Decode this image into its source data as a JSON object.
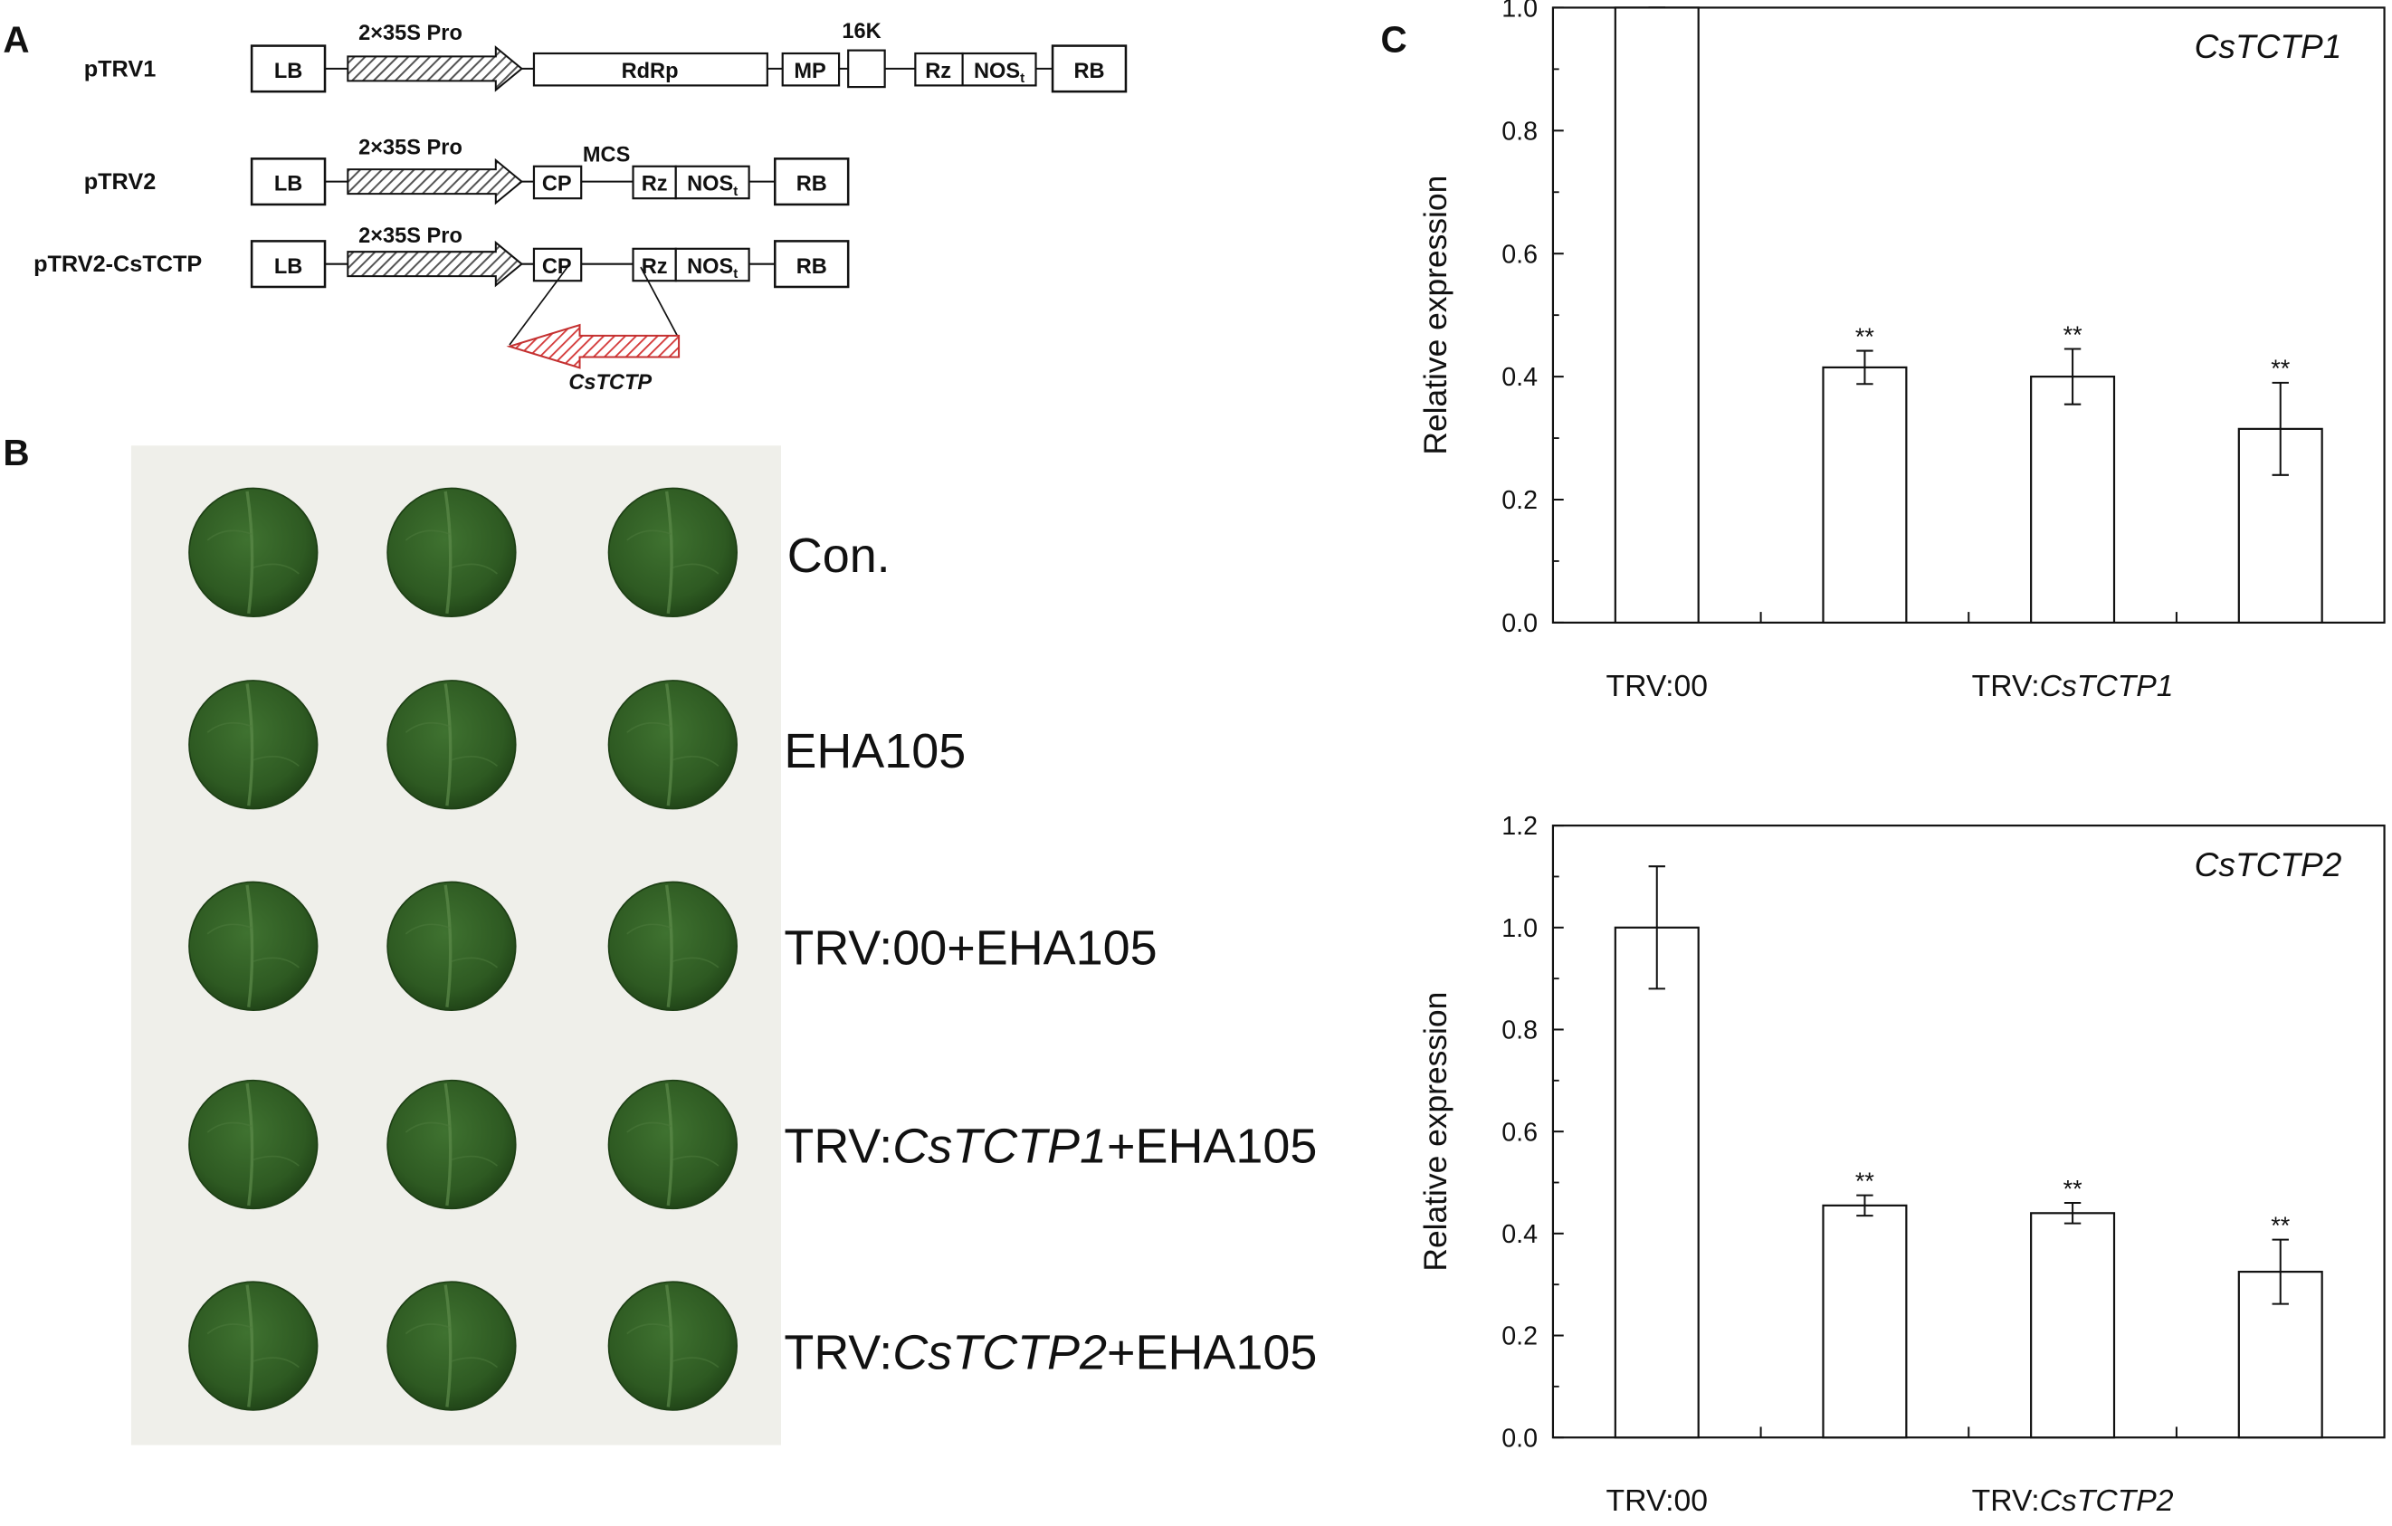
{
  "panels": {
    "a": "A",
    "b": "B",
    "c": "C"
  },
  "constructs": {
    "ptrv1": {
      "name": "pTRV1",
      "promoter": "2×35S Pro",
      "boxes": [
        "LB",
        "RdRp",
        "MP",
        "",
        "Rz",
        "NOS",
        "RB"
      ],
      "nos_sub": "t",
      "above_label": "16K"
    },
    "ptrv2": {
      "name": "pTRV2",
      "promoter": "2×35S Pro",
      "boxes": [
        "LB",
        "CP",
        "Rz",
        "NOS",
        "RB"
      ],
      "nos_sub": "t",
      "above_label": "MCS"
    },
    "ptrv2c": {
      "name": "pTRV2-CsTCTP",
      "promoter": "2×35S Pro",
      "boxes": [
        "LB",
        "CP",
        "Rz",
        "NOS",
        "RB"
      ],
      "nos_sub": "t",
      "insert": "CsTCTP"
    }
  },
  "leaf_rows": [
    {
      "pre": "Con.",
      "gene": "",
      "post": ""
    },
    {
      "pre": "EHA105",
      "gene": "",
      "post": ""
    },
    {
      "pre": "TRV:00+EHA105",
      "gene": "",
      "post": ""
    },
    {
      "pre": "TRV:",
      "gene": "CsTCTP1",
      "post": "+EHA105"
    },
    {
      "pre": "TRV:",
      "gene": "CsTCTP2",
      "post": "+EHA105"
    }
  ],
  "colors": {
    "leaf": "#2e5a22",
    "leaf_dark": "#1d3f15",
    "photo_bg": "#efefea",
    "insert": "#d43a3a",
    "hatch": "#555555"
  },
  "chart_data": [
    {
      "type": "bar",
      "title": "CsTCTP1",
      "ylabel": "Relative expression",
      "ylim": [
        0,
        1.0
      ],
      "yticks": [
        "0.0",
        "0.2",
        "0.4",
        "0.6",
        "0.8",
        "1.0"
      ],
      "values": [
        1.0,
        0.415,
        0.4,
        0.315
      ],
      "errors": [
        0.0,
        0.027,
        0.045,
        0.075
      ],
      "significance": [
        "",
        "**",
        "**",
        "**"
      ],
      "group_labels": [
        {
          "pre": "TRV:00",
          "gene": ""
        },
        {
          "pre": "TRV:",
          "gene": "CsTCTP1"
        }
      ]
    },
    {
      "type": "bar",
      "title": "CsTCTP2",
      "ylabel": "Relative expression",
      "ylim": [
        0,
        1.2
      ],
      "yticks": [
        "0.0",
        "0.2",
        "0.4",
        "0.6",
        "0.8",
        "1.0",
        "1.2"
      ],
      "values": [
        1.0,
        0.455,
        0.44,
        0.325
      ],
      "errors": [
        0.12,
        0.02,
        0.02,
        0.063
      ],
      "significance": [
        "",
        "**",
        "**",
        "**"
      ],
      "group_labels": [
        {
          "pre": "TRV:00",
          "gene": ""
        },
        {
          "pre": "TRV:",
          "gene": "CsTCTP2"
        }
      ]
    }
  ]
}
